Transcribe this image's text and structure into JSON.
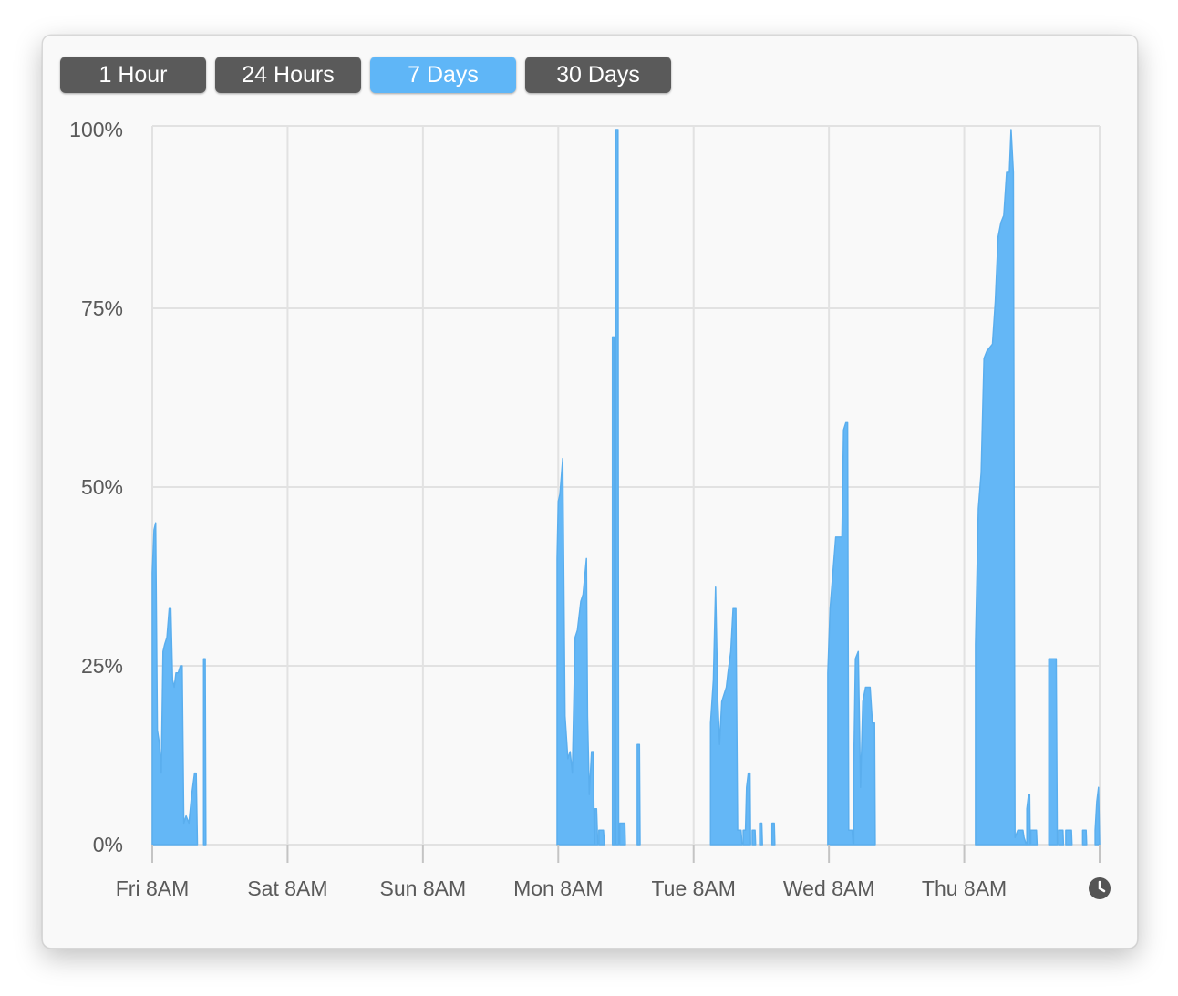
{
  "controls": {
    "range_buttons": [
      {
        "label": "1 Hour",
        "selected": false
      },
      {
        "label": "24 Hours",
        "selected": false
      },
      {
        "label": "7 Days",
        "selected": true
      },
      {
        "label": "30 Days",
        "selected": false
      }
    ],
    "clock_icon": "clock-icon"
  },
  "colors": {
    "series_fill": "#64b7f6",
    "series_stroke": "#5aaeee",
    "grid": "#e2e2e2",
    "selected_button": "#5fb6f7",
    "button": "#5a5a5a"
  },
  "chart_data": {
    "type": "area",
    "title": "",
    "xlabel": "",
    "ylabel": "",
    "x_unit": "hours",
    "xlim": [
      0,
      168
    ],
    "ylim": [
      0,
      100
    ],
    "grid": true,
    "yticks": [
      0,
      25,
      50,
      75,
      100
    ],
    "ytick_labels": [
      "0%",
      "25%",
      "50%",
      "75%",
      "100%"
    ],
    "xticks": [
      0,
      24,
      48,
      72,
      96,
      120,
      144,
      168
    ],
    "xtick_labels": [
      "Fri 8AM",
      "Sat 8AM",
      "Sun 8AM",
      "Mon 8AM",
      "Tue 8AM",
      "Wed 8AM",
      "Thu 8AM",
      ""
    ],
    "series": [
      {
        "segments": [
          [
            [
              0,
              38
            ],
            [
              0.3,
              44
            ],
            [
              0.6,
              45
            ],
            [
              0.9,
              16
            ],
            [
              1.3,
              14
            ],
            [
              1.6,
              10
            ],
            [
              1.9,
              27
            ],
            [
              2.2,
              28
            ],
            [
              2.6,
              29
            ],
            [
              3,
              33
            ],
            [
              3.3,
              33
            ],
            [
              3.6,
              23
            ],
            [
              3.9,
              22
            ],
            [
              4.2,
              24
            ],
            [
              4.6,
              24
            ],
            [
              5,
              25
            ],
            [
              5.3,
              25
            ],
            [
              5.6,
              3
            ],
            [
              6,
              4
            ],
            [
              6.5,
              3
            ],
            [
              7,
              7
            ],
            [
              7.5,
              10
            ],
            [
              7.8,
              10
            ],
            [
              8,
              0
            ]
          ],
          [
            [
              9.1,
              26
            ],
            [
              9.4,
              26
            ],
            [
              9.5,
              0
            ]
          ],
          [
            [
              71.8,
              40
            ],
            [
              72,
              48
            ],
            [
              72.3,
              49
            ],
            [
              72.8,
              54
            ],
            [
              73.2,
              18
            ],
            [
              73.7,
              12
            ],
            [
              74.1,
              13
            ],
            [
              74.5,
              10
            ],
            [
              75,
              29
            ],
            [
              75.4,
              30
            ],
            [
              76,
              34
            ],
            [
              76.4,
              35
            ],
            [
              77,
              40
            ],
            [
              77.2,
              18
            ],
            [
              77.5,
              7
            ],
            [
              77.9,
              13
            ],
            [
              78.2,
              13
            ],
            [
              78.4,
              0
            ]
          ],
          [
            [
              78.5,
              5
            ],
            [
              78.8,
              5
            ],
            [
              79,
              0
            ]
          ],
          [
            [
              79.2,
              2
            ],
            [
              80,
              2
            ],
            [
              80.2,
              0
            ]
          ],
          [
            [
              81.6,
              71
            ],
            [
              81.9,
              71
            ],
            [
              82,
              0
            ]
          ],
          [
            [
              82.2,
              100
            ],
            [
              82.6,
              100
            ],
            [
              82.7,
              0
            ]
          ],
          [
            [
              82.9,
              3
            ],
            [
              83.8,
              3
            ],
            [
              83.9,
              0
            ]
          ],
          [
            [
              86,
              14
            ],
            [
              86.4,
              14
            ],
            [
              86.5,
              0
            ]
          ],
          [
            [
              99,
              17
            ],
            [
              99.5,
              23
            ],
            [
              99.9,
              36
            ],
            [
              100.3,
              20
            ],
            [
              100.6,
              14
            ],
            [
              101,
              20
            ],
            [
              101.4,
              21
            ],
            [
              101.8,
              22
            ],
            [
              102.1,
              24
            ],
            [
              102.6,
              27
            ],
            [
              103,
              33
            ],
            [
              103.5,
              33
            ],
            [
              103.8,
              2
            ],
            [
              104.4,
              2
            ],
            [
              104.6,
              0
            ]
          ],
          [
            [
              104.8,
              2
            ],
            [
              105.2,
              2
            ],
            [
              105.4,
              8
            ],
            [
              105.7,
              10
            ],
            [
              106,
              10
            ],
            [
              106.1,
              0
            ]
          ],
          [
            [
              106.4,
              2
            ],
            [
              106.9,
              2
            ],
            [
              107,
              0
            ]
          ],
          [
            [
              107.7,
              3
            ],
            [
              108.1,
              3
            ],
            [
              108.2,
              0
            ]
          ],
          [
            [
              109.9,
              3
            ],
            [
              110.3,
              3
            ],
            [
              110.4,
              0
            ]
          ],
          [
            [
              119.8,
              24
            ],
            [
              120.2,
              33
            ],
            [
              120.7,
              38
            ],
            [
              121.2,
              43
            ],
            [
              122.3,
              43
            ],
            [
              122.6,
              58
            ],
            [
              123,
              59
            ],
            [
              123.3,
              59
            ],
            [
              123.5,
              2
            ],
            [
              124.1,
              2
            ],
            [
              124.3,
              0
            ]
          ],
          [
            [
              124.4,
              11
            ],
            [
              124.7,
              26
            ],
            [
              125.2,
              27
            ],
            [
              125.6,
              8
            ],
            [
              126,
              20
            ],
            [
              126.5,
              22
            ],
            [
              127.3,
              22
            ],
            [
              127.7,
              17
            ],
            [
              128.1,
              17
            ],
            [
              128.2,
              0
            ]
          ],
          [
            [
              146,
              28
            ],
            [
              146.5,
              47
            ],
            [
              147,
              52
            ],
            [
              147.5,
              68
            ],
            [
              148,
              69
            ],
            [
              149,
              70
            ],
            [
              149.5,
              76
            ],
            [
              150,
              85
            ],
            [
              150.5,
              87
            ],
            [
              151,
              88
            ],
            [
              151.5,
              94
            ],
            [
              152,
              94
            ],
            [
              152.3,
              100
            ],
            [
              152.7,
              94
            ],
            [
              153,
              1
            ],
            [
              153.5,
              2
            ],
            [
              154.4,
              2
            ],
            [
              154.6,
              1
            ],
            [
              155,
              0
            ]
          ],
          [
            [
              155.1,
              5
            ],
            [
              155.4,
              7
            ],
            [
              155.6,
              7
            ],
            [
              155.7,
              0
            ]
          ],
          [
            [
              155.8,
              2
            ],
            [
              156.8,
              2
            ],
            [
              156.9,
              0
            ]
          ],
          [
            [
              159,
              26
            ],
            [
              160.3,
              26
            ],
            [
              160.5,
              0
            ]
          ],
          [
            [
              160.7,
              2
            ],
            [
              161.5,
              2
            ],
            [
              161.6,
              0
            ]
          ],
          [
            [
              162,
              2
            ],
            [
              163,
              2
            ],
            [
              163.1,
              0
            ]
          ],
          [
            [
              165,
              2
            ],
            [
              165.6,
              2
            ],
            [
              165.7,
              0
            ]
          ],
          [
            [
              167.2,
              2
            ],
            [
              167.5,
              6
            ],
            [
              167.8,
              8
            ],
            [
              168,
              0
            ]
          ]
        ]
      }
    ]
  }
}
